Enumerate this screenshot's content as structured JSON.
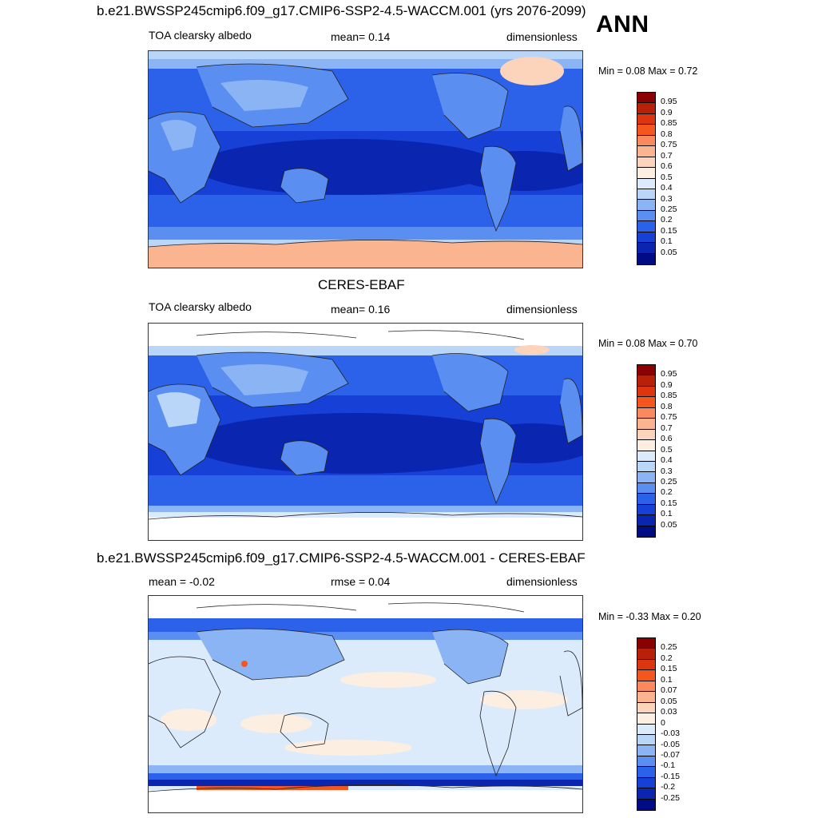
{
  "ann_label": "ANN",
  "panels": [
    {
      "title": "b.e21.BWSSP245cmip6.f09_g17.CMIP6-SSP2-4.5-WACCM.001 (yrs 2076-2099)",
      "left_label": "TOA clearsky albedo",
      "center_label": "mean=   0.14",
      "right_label": "dimensionless",
      "minmax": "Min =   0.08 Max =    0.72",
      "colorbar": {
        "labels": [
          "0.95",
          "0.9",
          "0.85",
          "0.8",
          "0.75",
          "0.7",
          "0.6",
          "0.5",
          "0.4",
          "0.3",
          "0.25",
          "0.2",
          "0.15",
          "0.1",
          "0.05"
        ],
        "colors": [
          "#8b0000",
          "#b8200a",
          "#dc3510",
          "#f4561e",
          "#fa8a5e",
          "#fbb490",
          "#fcd3bb",
          "#fdeee2",
          "#dcebfb",
          "#b9d5f8",
          "#8bb4f4",
          "#5a8ef0",
          "#2c62ea",
          "#1640d6",
          "#0a26b0",
          "#000c84"
        ]
      }
    },
    {
      "title": "CERES-EBAF",
      "left_label": "TOA clearsky albedo",
      "center_label": "mean=   0.16",
      "right_label": "dimensionless",
      "minmax": "Min =   0.08 Max =    0.70",
      "colorbar": {
        "labels": [
          "0.95",
          "0.9",
          "0.85",
          "0.8",
          "0.75",
          "0.7",
          "0.6",
          "0.5",
          "0.4",
          "0.3",
          "0.25",
          "0.2",
          "0.15",
          "0.1",
          "0.05"
        ],
        "colors": [
          "#8b0000",
          "#b8200a",
          "#dc3510",
          "#f4561e",
          "#fa8a5e",
          "#fbb490",
          "#fcd3bb",
          "#fdeee2",
          "#dcebfb",
          "#b9d5f8",
          "#8bb4f4",
          "#5a8ef0",
          "#2c62ea",
          "#1640d6",
          "#0a26b0",
          "#000c84"
        ]
      }
    },
    {
      "title": "b.e21.BWSSP245cmip6.f09_g17.CMIP6-SSP2-4.5-WACCM.001 - CERES-EBAF",
      "left_label": "mean =  -0.02",
      "center_label": "rmse =   0.04",
      "right_label": "dimensionless",
      "minmax": "Min =  -0.33 Max =    0.20",
      "colorbar": {
        "labels": [
          "0.25",
          "0.2",
          "0.15",
          "0.1",
          "0.07",
          "0.05",
          "0.03",
          "0",
          "-0.03",
          "-0.05",
          "-0.07",
          "-0.1",
          "-0.15",
          "-0.2",
          "-0.25"
        ],
        "colors": [
          "#8b0000",
          "#b8200a",
          "#dc3510",
          "#f4561e",
          "#fa8a5e",
          "#fbb490",
          "#fcd3bb",
          "#fdeee2",
          "#dcebfb",
          "#b9d5f8",
          "#8bb4f4",
          "#5a8ef0",
          "#2c62ea",
          "#1640d6",
          "#0a26b0",
          "#000c84"
        ]
      }
    }
  ]
}
